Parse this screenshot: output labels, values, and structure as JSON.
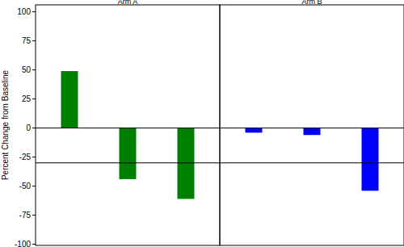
{
  "chart_data": [
    {
      "type": "bar",
      "title": "Arm A",
      "ylabel": "Percent Change from Baseline",
      "categories": [
        null,
        null,
        null
      ],
      "values": [
        49,
        -44,
        -61
      ],
      "color": "#008000",
      "ylim": [
        -101,
        106
      ],
      "yticks": [
        -100,
        -75,
        -50,
        -25,
        0,
        25,
        50,
        75,
        100
      ],
      "reference_lines": [
        0,
        -30
      ]
    },
    {
      "type": "bar",
      "title": "Arm B",
      "categories": [
        null,
        null,
        null
      ],
      "values": [
        -4,
        -6,
        -54
      ],
      "color": "#0000ff",
      "ylim": [
        -101,
        106
      ],
      "tick_labels": false,
      "reference_lines": [
        0,
        -30
      ]
    }
  ]
}
